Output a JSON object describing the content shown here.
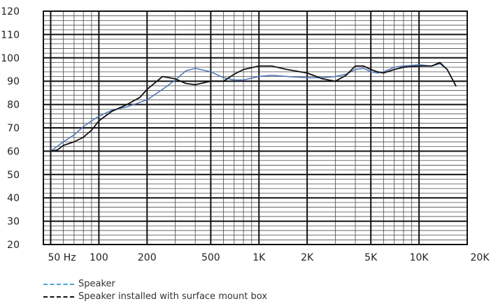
{
  "chart_data": {
    "type": "line",
    "title": "",
    "xlabel": "",
    "ylabel": "",
    "x_scale": "log",
    "xlim": [
      45,
      20000
    ],
    "ylim": [
      20,
      120
    ],
    "x_ticks": [
      {
        "value": 50,
        "label": "50 Hz"
      },
      {
        "value": 100,
        "label": "100"
      },
      {
        "value": 200,
        "label": "200"
      },
      {
        "value": 500,
        "label": "500"
      },
      {
        "value": 1000,
        "label": "1K"
      },
      {
        "value": 2000,
        "label": "2K"
      },
      {
        "value": 5000,
        "label": "5K"
      },
      {
        "value": 10000,
        "label": "10K"
      },
      {
        "value": 20000,
        "label": "20K"
      }
    ],
    "y_ticks": [
      20,
      30,
      40,
      50,
      60,
      70,
      80,
      90,
      100,
      110,
      120
    ],
    "grid": true,
    "legend_position": "bottom-left",
    "series": [
      {
        "name": "Speaker",
        "color": "#4a73b8",
        "x": [
          50,
          60,
          70,
          80,
          90,
          100,
          120,
          150,
          200,
          250,
          300,
          350,
          400,
          500,
          600,
          700,
          800,
          1000,
          1200,
          1500,
          2000,
          2500,
          3000,
          3500,
          4000,
          4500,
          5000,
          5500,
          6000,
          7000,
          8000,
          10000,
          12000,
          13500,
          15000,
          17000
        ],
        "y": [
          60,
          64,
          67,
          70.5,
          73,
          75,
          77.5,
          79,
          82,
          86.5,
          90.5,
          94.5,
          95.5,
          94,
          91.5,
          90.5,
          90.5,
          92,
          92.5,
          92,
          91.5,
          91.5,
          92,
          93,
          95,
          95.5,
          94,
          93.5,
          94,
          96,
          96.5,
          97,
          96.5,
          97.5,
          95,
          88
        ]
      },
      {
        "name": "Speaker installed with surface mount box",
        "color": "#111111",
        "x": [
          50,
          55,
          60,
          70,
          80,
          90,
          100,
          120,
          150,
          180,
          200,
          250,
          300,
          350,
          400,
          500,
          600,
          700,
          800,
          1000,
          1200,
          1500,
          2000,
          2500,
          3000,
          3500,
          4000,
          4500,
          5000,
          5500,
          6000,
          7000,
          8000,
          10000,
          12000,
          13500,
          15000,
          17000
        ],
        "y": [
          60,
          60.5,
          62.5,
          64,
          66,
          69,
          73,
          77,
          80,
          83,
          86.5,
          92,
          91,
          89,
          88.5,
          90,
          90,
          93,
          95,
          96.5,
          96.5,
          95,
          93.5,
          91,
          90,
          92.5,
          96.5,
          96.5,
          95,
          94,
          93.5,
          95,
          96,
          96.5,
          96.5,
          98,
          95,
          88
        ]
      }
    ]
  }
}
